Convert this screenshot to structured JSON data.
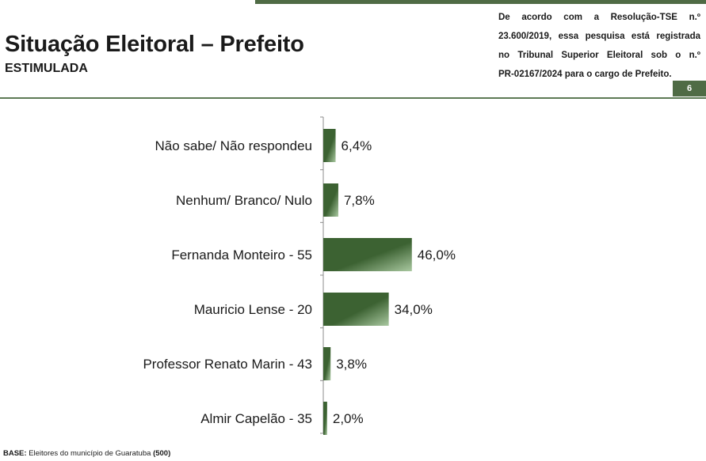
{
  "header": {
    "title": "Situação Eleitoral – Prefeito",
    "subtitle": "ESTIMULADA",
    "legal_lines": [
      "De acordo com a Resolução-TSE n.º",
      "23.600/2019, essa pesquisa está registrada",
      "no Tribunal Superior Eleitoral sob o n.º",
      "PR-02167/2024 para o cargo de Prefeito."
    ],
    "page_number": "6"
  },
  "footer": {
    "base_label": "BASE:",
    "base_text": "Eleitores do município de Guaratuba",
    "base_count": "(500)"
  },
  "colors": {
    "accent": "#4f6b45",
    "bar_dark": "#3c6232",
    "bar_light": "#a9c8a0"
  },
  "chart_data": {
    "type": "bar",
    "orientation": "horizontal",
    "categories": [
      "Não sabe/ Não respondeu",
      "Nenhum/ Branco/ Nulo",
      "Fernanda Monteiro - 55",
      "Mauricio Lense - 20",
      "Professor Renato Marin - 43",
      "Almir Capelão - 35"
    ],
    "values": [
      6.4,
      7.8,
      46.0,
      34.0,
      3.8,
      2.0
    ],
    "value_labels": [
      "6,4%",
      "7,8%",
      "46,0%",
      "34,0%",
      "3,8%",
      "2,0%"
    ],
    "unit": "%",
    "xlim": [
      0,
      100
    ],
    "grid": false,
    "legend": "none"
  }
}
